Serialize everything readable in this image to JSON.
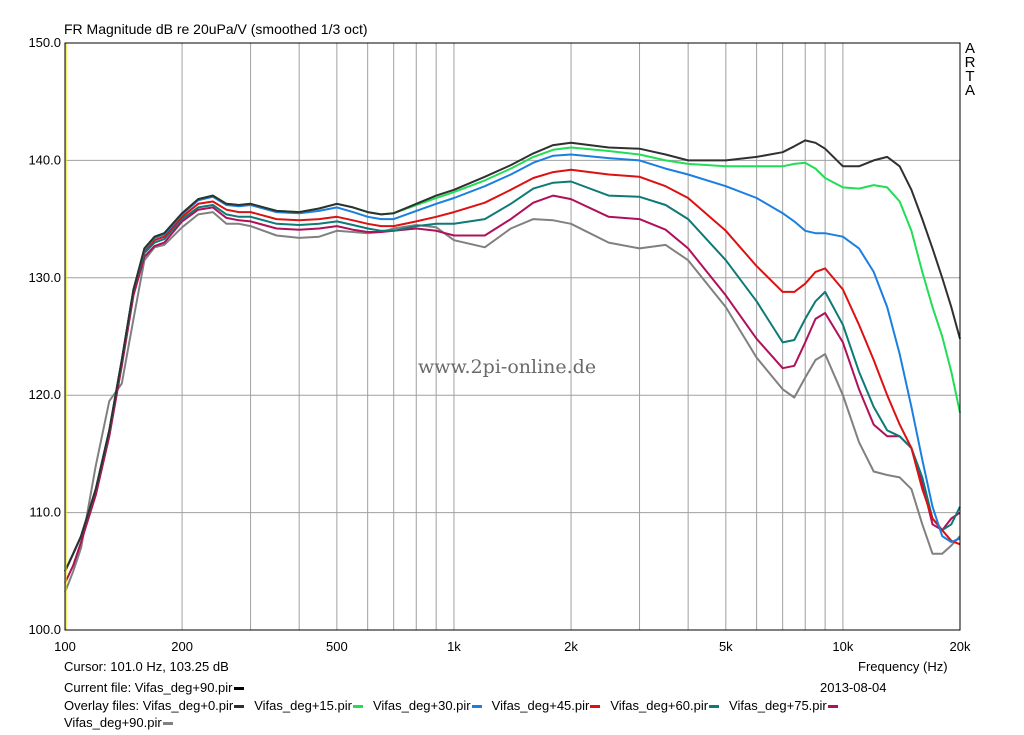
{
  "chart_data": {
    "type": "line",
    "title": "FR Magnitude dB re 20uPa/V (smoothed 1/3 oct)",
    "xlabel": "Frequency (Hz)",
    "ylabel": "",
    "x_scale": "log",
    "xlim": [
      100,
      20000
    ],
    "ylim": [
      100,
      150
    ],
    "grid": true,
    "x_ticks": [
      {
        "value": 100,
        "label": "100"
      },
      {
        "value": 200,
        "label": "200"
      },
      {
        "value": 500,
        "label": "500"
      },
      {
        "value": 1000,
        "label": "1k"
      },
      {
        "value": 2000,
        "label": "2k"
      },
      {
        "value": 5000,
        "label": "5k"
      },
      {
        "value": 10000,
        "label": "10k"
      },
      {
        "value": 20000,
        "label": "20k"
      }
    ],
    "y_ticks": [
      {
        "value": 100,
        "label": "100.0"
      },
      {
        "value": 110,
        "label": "110.0"
      },
      {
        "value": 120,
        "label": "120.0"
      },
      {
        "value": 130,
        "label": "130.0"
      },
      {
        "value": 140,
        "label": "140.0"
      },
      {
        "value": 150,
        "label": "150.0"
      }
    ],
    "x": [
      100,
      105,
      110,
      120,
      130,
      140,
      150,
      160,
      170,
      180,
      200,
      220,
      240,
      260,
      280,
      300,
      350,
      400,
      450,
      500,
      550,
      600,
      650,
      700,
      800,
      900,
      1000,
      1200,
      1400,
      1600,
      1800,
      2000,
      2500,
      3000,
      3500,
      4000,
      5000,
      6000,
      7000,
      7500,
      8000,
      8500,
      9000,
      10000,
      11000,
      12000,
      13000,
      14000,
      15000,
      16000,
      17000,
      18000,
      19000,
      20000
    ],
    "series": [
      {
        "name": "Vifas_deg+0.pir",
        "color": "#303030",
        "values": [
          105.0,
          106.5,
          108.0,
          112.0,
          117.0,
          123.0,
          129.0,
          132.5,
          133.5,
          133.8,
          135.5,
          136.7,
          137.0,
          136.3,
          136.2,
          136.3,
          135.7,
          135.6,
          135.9,
          136.3,
          136.0,
          135.6,
          135.4,
          135.5,
          136.3,
          137.0,
          137.5,
          138.6,
          139.6,
          140.6,
          141.3,
          141.5,
          141.1,
          141.0,
          140.5,
          140.0,
          140.0,
          140.3,
          140.7,
          141.2,
          141.7,
          141.5,
          141.0,
          139.5,
          139.5,
          140.0,
          140.3,
          139.5,
          137.5,
          135.0,
          132.5,
          130.0,
          127.5,
          124.8
        ]
      },
      {
        "name": "Vifas_deg+15.pir",
        "color": "#22dd55",
        "values": [
          105.0,
          106.5,
          108.0,
          112.0,
          117.0,
          123.0,
          129.0,
          132.5,
          133.5,
          133.8,
          135.5,
          136.7,
          137.0,
          136.3,
          136.2,
          136.3,
          135.7,
          135.6,
          135.9,
          136.3,
          136.0,
          135.6,
          135.4,
          135.5,
          136.2,
          136.8,
          137.3,
          138.3,
          139.3,
          140.3,
          140.9,
          141.1,
          140.8,
          140.5,
          140.0,
          139.7,
          139.5,
          139.5,
          139.5,
          139.7,
          139.8,
          139.3,
          138.5,
          137.7,
          137.6,
          137.9,
          137.7,
          136.5,
          134.0,
          130.5,
          127.5,
          125.0,
          122.0,
          118.5
        ]
      },
      {
        "name": "Vifas_deg+30.pir",
        "color": "#1a7fe0",
        "values": [
          105.0,
          106.5,
          108.0,
          112.0,
          117.0,
          123.0,
          129.0,
          132.4,
          133.4,
          133.7,
          135.4,
          136.6,
          136.9,
          136.2,
          136.1,
          136.2,
          135.6,
          135.5,
          135.7,
          136.0,
          135.6,
          135.2,
          135.0,
          135.0,
          135.7,
          136.3,
          136.8,
          137.8,
          138.8,
          139.8,
          140.4,
          140.5,
          140.2,
          140.0,
          139.3,
          138.8,
          137.8,
          136.8,
          135.5,
          134.8,
          134.0,
          133.8,
          133.8,
          133.5,
          132.5,
          130.5,
          127.5,
          123.5,
          119.0,
          114.5,
          110.5,
          108.0,
          107.5,
          107.8
        ]
      },
      {
        "name": "Vifas_deg+45.pir",
        "color": "#dd1111",
        "values": [
          105.0,
          106.5,
          108.0,
          112.0,
          117.0,
          123.0,
          129.0,
          132.3,
          133.2,
          133.5,
          135.2,
          136.3,
          136.5,
          135.8,
          135.6,
          135.6,
          135.0,
          134.9,
          135.0,
          135.2,
          134.9,
          134.6,
          134.4,
          134.4,
          134.8,
          135.2,
          135.6,
          136.4,
          137.5,
          138.5,
          139.0,
          139.2,
          138.8,
          138.6,
          137.8,
          136.8,
          134.0,
          131.0,
          128.8,
          128.8,
          129.5,
          130.5,
          130.8,
          129.0,
          126.0,
          123.0,
          120.0,
          117.5,
          115.5,
          112.0,
          109.5,
          108.5,
          107.6,
          107.3
        ]
      },
      {
        "name": "Vifas_deg+60.pir",
        "color": "#0d7a77",
        "values": [
          105.0,
          106.5,
          108.0,
          112.0,
          117.0,
          123.0,
          129.0,
          132.1,
          133.0,
          133.3,
          135.0,
          136.0,
          136.2,
          135.4,
          135.2,
          135.2,
          134.6,
          134.5,
          134.6,
          134.8,
          134.5,
          134.2,
          134.0,
          134.0,
          134.4,
          134.6,
          134.6,
          135.0,
          136.3,
          137.6,
          138.1,
          138.2,
          137.0,
          136.9,
          136.2,
          135.0,
          131.5,
          128.0,
          124.5,
          124.7,
          126.5,
          128.0,
          128.8,
          126.0,
          122.0,
          119.0,
          117.0,
          116.5,
          115.5,
          113.0,
          109.5,
          108.5,
          109.0,
          110.5
        ]
      },
      {
        "name": "Vifas_deg+75.pir",
        "color": "#b0105a",
        "values": [
          104.0,
          105.5,
          107.5,
          111.5,
          116.5,
          122.5,
          128.5,
          131.8,
          132.7,
          133.0,
          134.8,
          135.8,
          136.0,
          135.1,
          134.9,
          134.8,
          134.2,
          134.1,
          134.2,
          134.4,
          134.1,
          133.9,
          133.9,
          134.0,
          134.2,
          134.0,
          133.6,
          133.6,
          135.0,
          136.4,
          137.0,
          136.7,
          135.2,
          135.0,
          134.1,
          132.5,
          128.5,
          124.8,
          122.3,
          122.5,
          124.5,
          126.5,
          127.0,
          124.5,
          120.5,
          117.5,
          116.5,
          116.5,
          115.5,
          112.5,
          109.0,
          108.5,
          109.5,
          110.0
        ]
      },
      {
        "name": "Vifas_deg+90.pir",
        "color": "#808080",
        "values": [
          103.2,
          105.0,
          107.0,
          114.0,
          119.5,
          121.0,
          126.5,
          131.5,
          132.6,
          132.8,
          134.3,
          135.4,
          135.6,
          134.6,
          134.6,
          134.4,
          133.6,
          133.4,
          133.5,
          134.0,
          133.9,
          133.8,
          133.9,
          134.2,
          134.5,
          134.3,
          133.2,
          132.6,
          134.2,
          135.0,
          134.9,
          134.6,
          133.0,
          132.5,
          132.8,
          131.5,
          127.5,
          123.2,
          120.5,
          119.8,
          121.5,
          123.0,
          123.5,
          120.0,
          116.0,
          113.5,
          113.2,
          113.0,
          112.0,
          109.0,
          106.5,
          106.5,
          107.2,
          108.0
        ]
      }
    ]
  },
  "side_label": [
    "A",
    "R",
    "T",
    "A"
  ],
  "watermark": "www.2pi-online.de",
  "footer": {
    "cursor": "Cursor: 101.0 Hz, 103.25 dB",
    "frequency_label": "Frequency (Hz)",
    "current_file": "Current file: Vifas_deg+90.pir",
    "date": "2013-08-04",
    "overlay_prefix": "Overlay files:",
    "overlay_items": [
      {
        "label": "Vifas_deg+0.pir",
        "color": "#303030"
      },
      {
        "label": "Vifas_deg+15.pir",
        "color": "#22dd55"
      },
      {
        "label": "Vifas_deg+30.pir",
        "color": "#1a7fe0"
      },
      {
        "label": "Vifas_deg+45.pir",
        "color": "#dd1111"
      },
      {
        "label": "Vifas_deg+60.pir",
        "color": "#0d7a77"
      },
      {
        "label": "Vifas_deg+75.pir",
        "color": "#b0105a"
      },
      {
        "label": "Vifas_deg+90.pir",
        "color": "#808080"
      }
    ]
  },
  "colors": {
    "grid": "#a0a0a0",
    "frame": "#000000",
    "background": "#ffffff"
  }
}
